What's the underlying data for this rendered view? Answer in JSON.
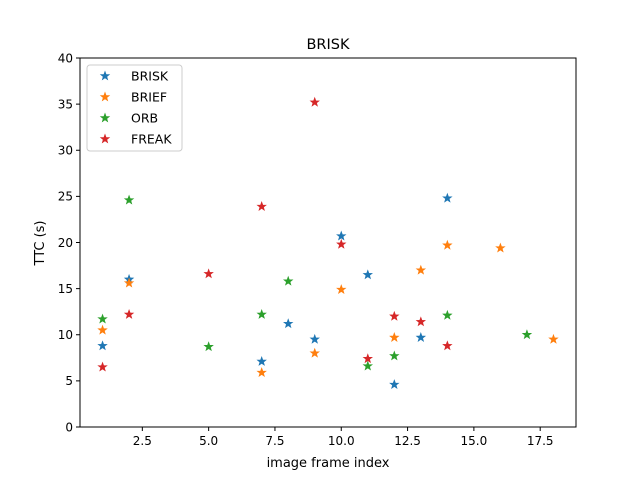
{
  "chart_data": {
    "type": "scatter",
    "title": "BRISK",
    "xlabel": "image frame index",
    "ylabel": "TTC (s)",
    "xlim": [
      0.15,
      18.85
    ],
    "ylim": [
      0,
      40
    ],
    "xticks": [
      2.5,
      5.0,
      7.5,
      10.0,
      12.5,
      15.0,
      17.5
    ],
    "xtick_labels": [
      "2.5",
      "5.0",
      "7.5",
      "10.0",
      "12.5",
      "15.0",
      "17.5"
    ],
    "yticks": [
      0,
      5,
      10,
      15,
      20,
      25,
      30,
      35,
      40
    ],
    "ytick_labels": [
      "0",
      "5",
      "10",
      "15",
      "20",
      "25",
      "30",
      "35",
      "40"
    ],
    "grid": false,
    "legend_position": "upper-left",
    "marker": "star",
    "series": [
      {
        "name": "BRISK",
        "color": "#1f77b4",
        "points": [
          [
            1,
            8.8
          ],
          [
            2,
            16.0
          ],
          [
            7,
            7.1
          ],
          [
            8,
            11.2
          ],
          [
            9,
            9.5
          ],
          [
            10,
            20.7
          ],
          [
            11,
            16.5
          ],
          [
            12,
            4.6
          ],
          [
            13,
            9.7
          ],
          [
            14,
            24.8
          ]
        ]
      },
      {
        "name": "BRIEF",
        "color": "#ff7f0e",
        "points": [
          [
            1,
            10.5
          ],
          [
            2,
            15.6
          ],
          [
            7,
            5.9
          ],
          [
            9,
            8.0
          ],
          [
            10,
            14.9
          ],
          [
            12,
            9.7
          ],
          [
            13,
            17.0
          ],
          [
            14,
            19.7
          ],
          [
            16,
            19.4
          ],
          [
            18,
            9.5
          ]
        ]
      },
      {
        "name": "ORB",
        "color": "#2ca02c",
        "points": [
          [
            1,
            11.7
          ],
          [
            2,
            24.6
          ],
          [
            5,
            8.7
          ],
          [
            7,
            12.2
          ],
          [
            8,
            15.8
          ],
          [
            11,
            6.6
          ],
          [
            12,
            7.7
          ],
          [
            14,
            12.1
          ],
          [
            17,
            10.0
          ]
        ]
      },
      {
        "name": "FREAK",
        "color": "#d62728",
        "points": [
          [
            1,
            6.5
          ],
          [
            2,
            12.2
          ],
          [
            5,
            16.6
          ],
          [
            7,
            23.9
          ],
          [
            9,
            35.2
          ],
          [
            10,
            19.8
          ],
          [
            11,
            7.4
          ],
          [
            12,
            12.0
          ],
          [
            13,
            11.4
          ],
          [
            14,
            8.8
          ]
        ]
      }
    ]
  }
}
